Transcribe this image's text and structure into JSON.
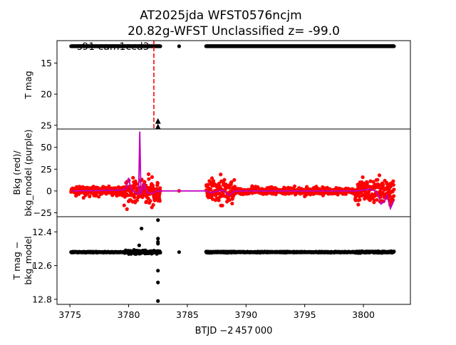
{
  "chart_data": {
    "type": "scatter",
    "title_lines": [
      "AT2025jda  WFST0576ncjm",
      "20.82g-WFST Unclassified z= -99.0"
    ],
    "xlabel": "BTJD −2 457 000",
    "xlim": [
      3773.9,
      3804.0
    ],
    "xticks": [
      3775,
      3780,
      3785,
      3790,
      3795,
      3800
    ],
    "colors": {
      "lc": "#000000",
      "bkg": "#ff0000",
      "model": "#bf00bf",
      "marker_line": "#ff0000"
    },
    "segments": [
      {
        "start": 3775.1,
        "end": 3779.6,
        "bkg_noise": 6,
        "lc_noise": 0.004
      },
      {
        "start": 3779.6,
        "end": 3782.7,
        "bkg_noise": 20,
        "lc_noise": 0.015
      },
      {
        "start": 3784.3,
        "end": 3784.3,
        "bkg_noise": 8,
        "lc_noise": 0.0
      },
      {
        "start": 3786.6,
        "end": 3789.0,
        "bkg_noise": 20,
        "lc_noise": 0.006
      },
      {
        "start": 3789.0,
        "end": 3799.3,
        "bkg_noise": 5,
        "lc_noise": 0.004
      },
      {
        "start": 3799.3,
        "end": 3802.6,
        "bkg_noise": 20,
        "lc_noise": 0.007
      }
    ],
    "panels": [
      {
        "ylabel": [
          "T mag"
        ],
        "ylim": [
          11.4,
          25.6
        ],
        "inverted": true,
        "yticks": [
          15,
          20,
          25
        ],
        "baseline_mag": 12.3,
        "annotation": "s91 cam1ccd3",
        "vline_x": 3782.15,
        "upper_limits": [
          [
            3782.5,
            24.3
          ],
          [
            3782.5,
            25.2
          ]
        ]
      },
      {
        "ylabel": [
          "Bkg (red)/",
          "bkg_model (purple)"
        ],
        "ylim": [
          -29.5,
          71
        ],
        "inverted": false,
        "yticks": [
          50,
          25,
          0,
          -25
        ],
        "model": [
          [
            3775.2,
            0
          ],
          [
            3779.4,
            1
          ],
          [
            3779.8,
            3
          ],
          [
            3780.0,
            15
          ],
          [
            3780.2,
            2
          ],
          [
            3780.6,
            -2
          ],
          [
            3780.85,
            -3
          ],
          [
            3780.95,
            68
          ],
          [
            3781.05,
            -4
          ],
          [
            3781.3,
            8
          ],
          [
            3781.6,
            -2
          ],
          [
            3782.0,
            -3
          ],
          [
            3782.4,
            0
          ],
          [
            3786.6,
            0
          ],
          [
            3787.0,
            -2
          ],
          [
            3788.0,
            1
          ],
          [
            3788.6,
            -5
          ],
          [
            3789.0,
            0
          ],
          [
            3799.5,
            0
          ],
          [
            3800.5,
            2
          ],
          [
            3801.0,
            0
          ],
          [
            3801.3,
            -5
          ],
          [
            3801.5,
            -15
          ],
          [
            3801.8,
            -12
          ],
          [
            3802.0,
            -5
          ],
          [
            3802.3,
            -20
          ],
          [
            3802.5,
            -14
          ],
          [
            3802.6,
            -10
          ]
        ]
      },
      {
        "ylabel": [
          "T mag −",
          "bkg_model"
        ],
        "ylim": [
          12.31,
          12.83
        ],
        "inverted": true,
        "yticks": [
          12.4,
          12.6,
          12.8
        ],
        "baseline": 12.52,
        "outliers": [
          [
            3782.5,
            12.33
          ],
          [
            3781.1,
            12.38
          ],
          [
            3782.5,
            12.44
          ],
          [
            3782.5,
            12.46
          ],
          [
            3782.5,
            12.47
          ],
          [
            3780.9,
            12.48
          ],
          [
            3782.5,
            12.63
          ],
          [
            3782.5,
            12.7
          ],
          [
            3782.5,
            12.81
          ]
        ]
      }
    ]
  }
}
